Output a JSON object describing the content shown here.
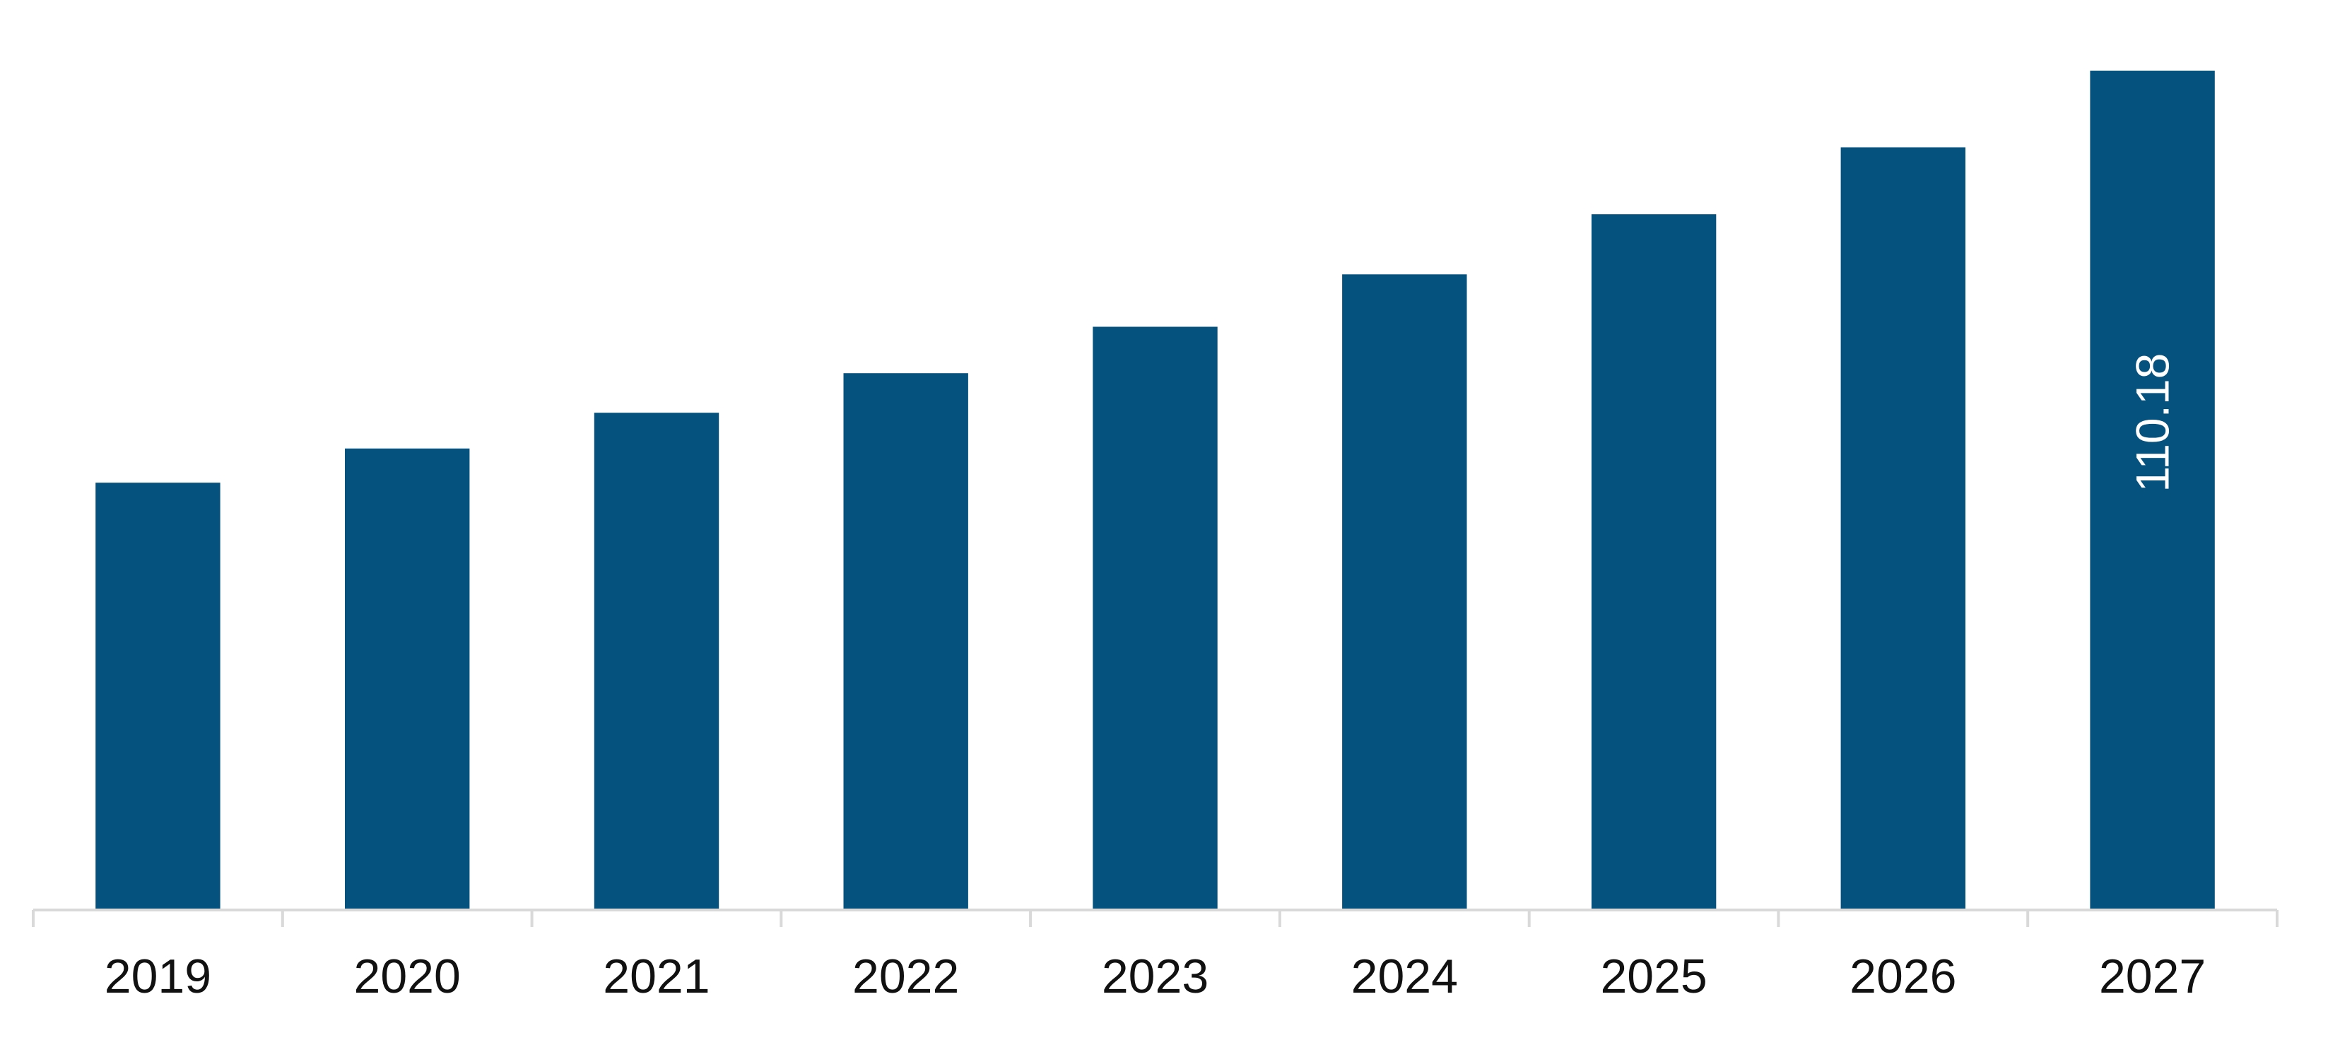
{
  "chart_data": {
    "type": "bar",
    "categories": [
      "2019",
      "2020",
      "2021",
      "2022",
      "2023",
      "2024",
      "2025",
      "2026",
      "2027"
    ],
    "values": [
      56.0,
      60.5,
      65.2,
      70.4,
      76.5,
      83.4,
      91.3,
      100.1,
      110.18
    ],
    "value_labels": [
      "",
      "",
      "",
      "",
      "",
      "",
      "",
      "",
      "110.18"
    ],
    "title": "",
    "xlabel": "",
    "ylabel": "",
    "ylim": [
      0,
      120
    ],
    "grid": false,
    "bar_color": "#06527f",
    "axis_color": "#d9d9d9"
  }
}
